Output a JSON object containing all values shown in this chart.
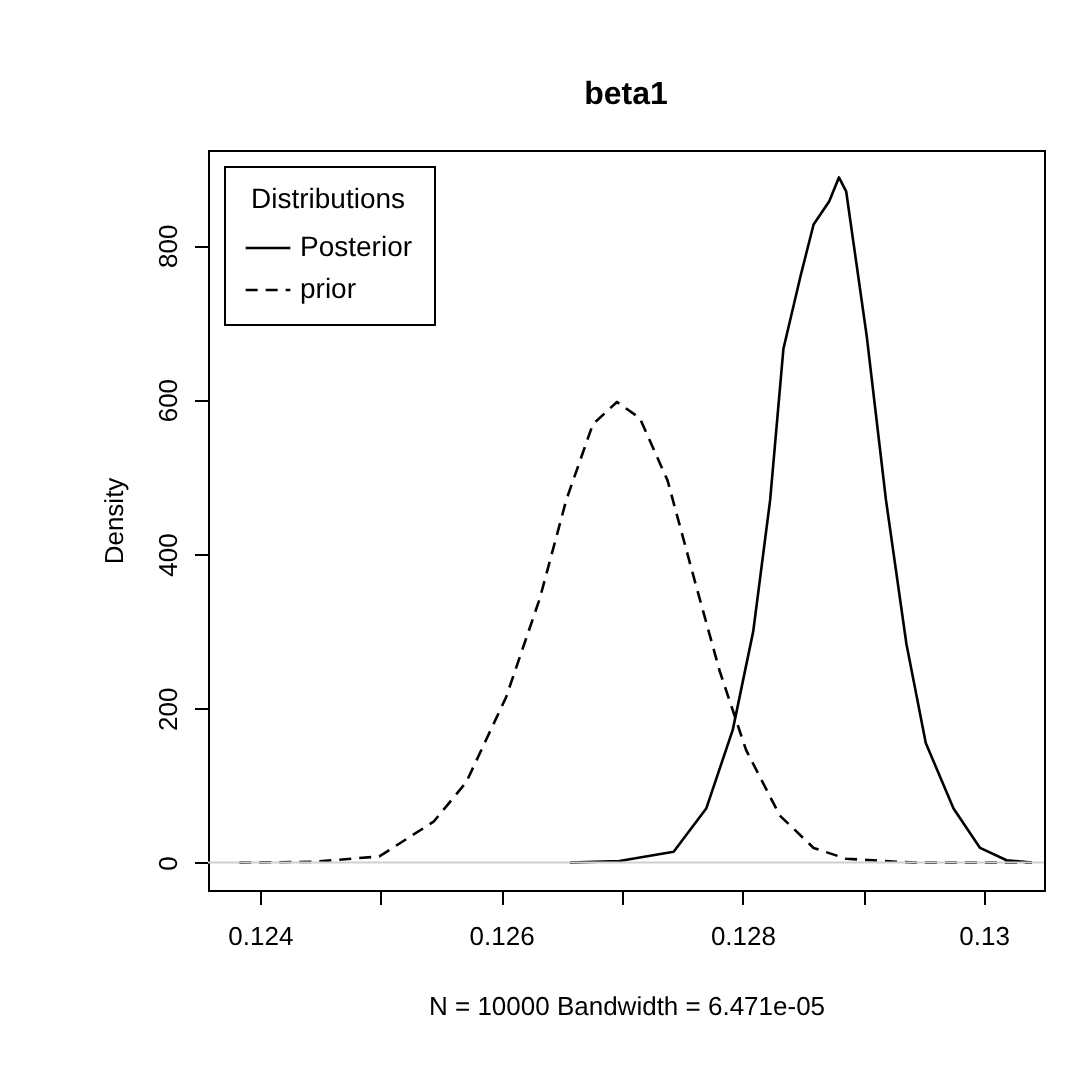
{
  "chart_data": {
    "type": "line",
    "title": "beta1",
    "xlabel": "N = 10000   Bandwidth = 6.471e-05",
    "ylabel": "Density",
    "legend_title": "Distributions",
    "legend": "top left",
    "grid": false,
    "xlim": [
      0.12357,
      0.1305
    ],
    "ylim": [
      -35.5,
      923.5
    ],
    "xticks": [
      0.124,
      {
        "value": 0.125,
        "label": null
      },
      0.126,
      {
        "value": 0.127,
        "label": null
      },
      0.128,
      {
        "value": 0.129,
        "label": null
      },
      0.13
    ],
    "yticks": [
      0,
      200,
      400,
      600,
      800
    ],
    "ref_lines": [
      {
        "axis": "y",
        "value": 0,
        "color": "#d0d0d0"
      }
    ],
    "series": [
      {
        "name": "Posterior",
        "color": "#000000",
        "line_style": "solid",
        "x": [
          0.12657,
          0.12698,
          0.12743,
          0.1277,
          0.12792,
          0.12809,
          0.12823,
          0.12834,
          0.12848,
          0.12859,
          0.12872,
          0.1288,
          0.12886,
          0.12903,
          0.12919,
          0.12936,
          0.12952,
          0.12975,
          0.12997,
          0.13019,
          0.1304
        ],
        "values": [
          0,
          2,
          14,
          70,
          172,
          300,
          470,
          666,
          759,
          827,
          857,
          888,
          870,
          683,
          470,
          283,
          155,
          70,
          19,
          3,
          0
        ]
      },
      {
        "name": "prior",
        "color": "#000000",
        "line_style": "dashed",
        "x": [
          0.12383,
          0.12444,
          0.12499,
          0.12544,
          0.12571,
          0.12604,
          0.12632,
          0.12654,
          0.12676,
          0.12696,
          0.12715,
          0.12738,
          0.1276,
          0.12781,
          0.12803,
          0.12831,
          0.12859,
          0.12886,
          0.12941,
          0.12997,
          0.1304
        ],
        "values": [
          0,
          1,
          8,
          53,
          104,
          214,
          342,
          470,
          568,
          597,
          576,
          495,
          368,
          249,
          146,
          61,
          19,
          5,
          0,
          0,
          0
        ]
      }
    ]
  }
}
